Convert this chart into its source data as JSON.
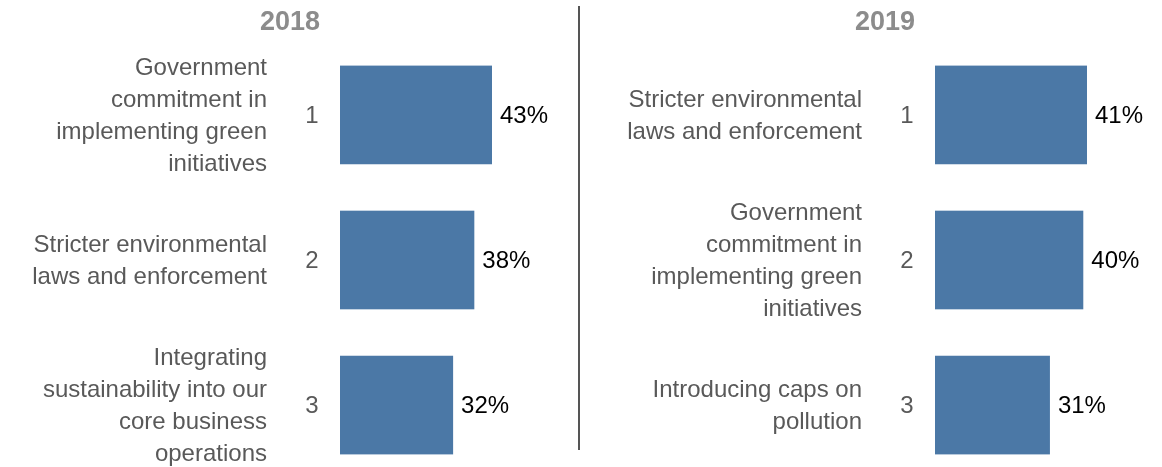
{
  "chart_data": [
    {
      "type": "bar",
      "orientation": "horizontal",
      "title": "2018",
      "categories": [
        "Government commitment in implementing green initiatives",
        "Stricter environmental laws and enforcement",
        "Integrating sustainability into our core business operations"
      ],
      "values": [
        43,
        38,
        32
      ],
      "value_labels": [
        "43%",
        "38%",
        "32%"
      ],
      "color": "#4b78a6",
      "tick_labels": "y",
      "annotations": [
        "1",
        "2",
        "3"
      ]
    },
    {
      "type": "bar",
      "orientation": "horizontal",
      "title": "2019",
      "categories": [
        "Stricter environmental laws and enforcement",
        "Government commitment in implementing green initiatives",
        "Introducing caps on pollution"
      ],
      "values": [
        41,
        40,
        31
      ],
      "value_labels": [
        "41%",
        "40%",
        "31%"
      ],
      "color": "#4b78a6",
      "tick_labels": "y",
      "annotations": [
        "1",
        "2",
        "3"
      ]
    }
  ]
}
